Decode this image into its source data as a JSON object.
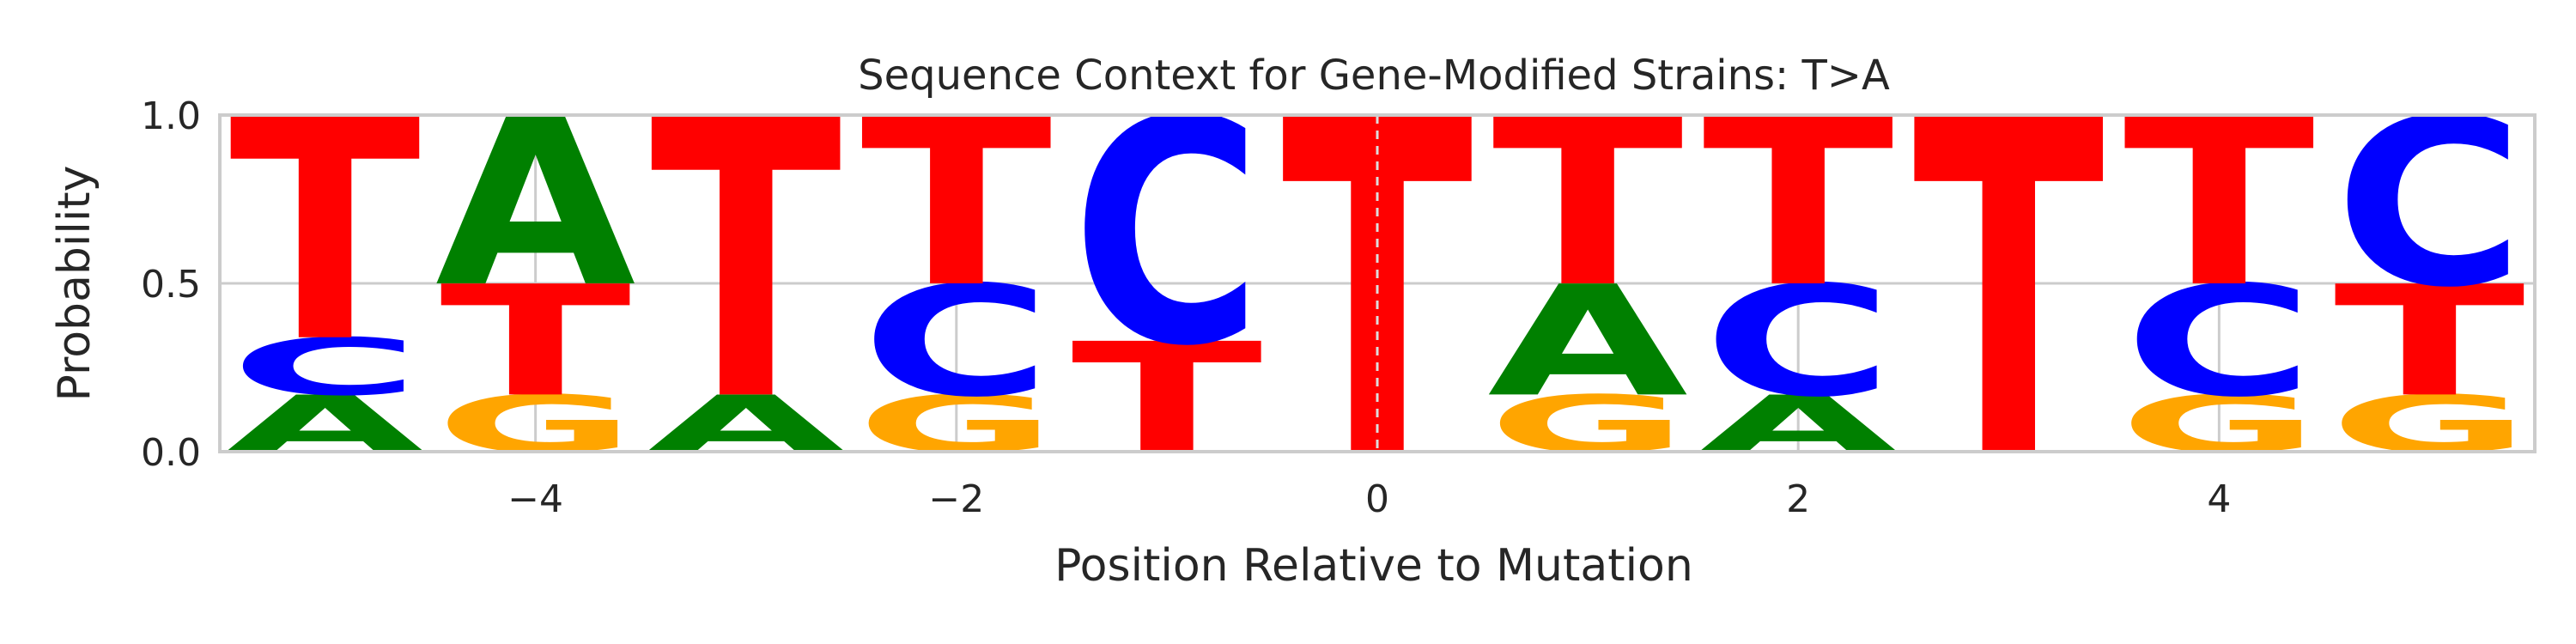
{
  "chart_data": {
    "type": "sequence-logo",
    "title": "Sequence Context for Gene-Modified Strains: T>A",
    "xlabel": "Position Relative to Mutation",
    "ylabel": "Probability",
    "xlim": [
      -5.5,
      5.5
    ],
    "ylim": [
      0.0,
      1.0
    ],
    "xticks": [
      -4,
      -2,
      0,
      2,
      4
    ],
    "xtick_labels": [
      "−4",
      "−2",
      "0",
      "2",
      "4"
    ],
    "yticks": [
      0.0,
      0.5,
      1.0
    ],
    "ytick_labels": [
      "0.0",
      "0.5",
      "1.0"
    ],
    "grid": true,
    "mutation_position": 0,
    "colors": {
      "A": "#008000",
      "C": "#0000ff",
      "G": "#ffa500",
      "T": "#ff0000"
    },
    "positions": [
      {
        "pos": -5,
        "A": 0.17,
        "C": 0.17,
        "G": 0.0,
        "T": 0.66
      },
      {
        "pos": -4,
        "A": 0.5,
        "C": 0.0,
        "G": 0.17,
        "T": 0.33
      },
      {
        "pos": -3,
        "A": 0.17,
        "C": 0.0,
        "G": 0.0,
        "T": 0.83
      },
      {
        "pos": -2,
        "A": 0.0,
        "C": 0.33,
        "G": 0.17,
        "T": 0.5
      },
      {
        "pos": -1,
        "A": 0.0,
        "C": 0.67,
        "G": 0.0,
        "T": 0.33
      },
      {
        "pos": 0,
        "A": 0.0,
        "C": 0.0,
        "G": 0.0,
        "T": 1.0
      },
      {
        "pos": 1,
        "A": 0.33,
        "C": 0.0,
        "G": 0.17,
        "T": 0.5
      },
      {
        "pos": 2,
        "A": 0.17,
        "C": 0.33,
        "G": 0.0,
        "T": 0.5
      },
      {
        "pos": 3,
        "A": 0.0,
        "C": 0.0,
        "G": 0.0,
        "T": 1.0
      },
      {
        "pos": 4,
        "A": 0.0,
        "C": 0.33,
        "G": 0.17,
        "T": 0.5
      },
      {
        "pos": 5,
        "A": 0.0,
        "C": 0.5,
        "G": 0.17,
        "T": 0.33
      }
    ]
  }
}
